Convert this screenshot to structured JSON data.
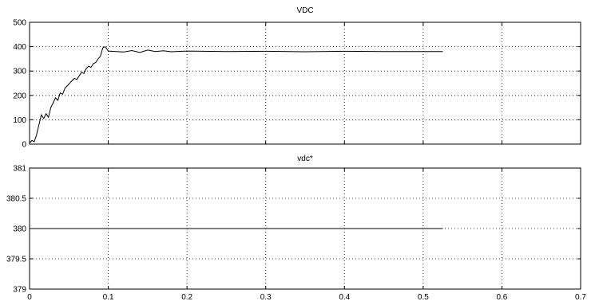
{
  "chart_data": [
    {
      "type": "line",
      "title": "VDC",
      "xlabel": "",
      "ylabel": "",
      "xlim": [
        0,
        0.7
      ],
      "ylim": [
        0,
        500
      ],
      "xticks": [
        "0",
        "0.1",
        "0.2",
        "0.3",
        "0.4",
        "0.5",
        "0.6",
        "0.7"
      ],
      "yticks": [
        "0",
        "100",
        "200",
        "300",
        "400",
        "500"
      ],
      "grid": true,
      "series": [
        {
          "x": [
            0,
            0.003,
            0.006,
            0.009,
            0.012,
            0.015,
            0.018,
            0.021,
            0.024,
            0.027,
            0.03,
            0.033,
            0.036,
            0.039,
            0.042,
            0.045,
            0.048,
            0.051,
            0.054,
            0.057,
            0.06,
            0.063,
            0.066,
            0.069,
            0.072,
            0.075,
            0.078,
            0.081,
            0.084,
            0.087,
            0.09,
            0.093,
            0.096,
            0.1,
            0.11,
            0.12,
            0.13,
            0.14,
            0.15,
            0.16,
            0.17,
            0.18,
            0.2,
            0.25,
            0.3,
            0.35,
            0.4,
            0.45,
            0.5,
            0.525
          ],
          "y": [
            5,
            15,
            10,
            40,
            80,
            120,
            105,
            125,
            110,
            150,
            170,
            190,
            180,
            210,
            205,
            230,
            240,
            250,
            260,
            270,
            265,
            280,
            295,
            290,
            310,
            320,
            315,
            330,
            335,
            350,
            360,
            395,
            400,
            382,
            380,
            378,
            384,
            376,
            386,
            380,
            383,
            379,
            382,
            380,
            381,
            379,
            381,
            380,
            380,
            380
          ]
        }
      ]
    },
    {
      "type": "line",
      "title": "vdc*",
      "xlabel": "",
      "ylabel": "",
      "xlim": [
        0,
        0.7
      ],
      "ylim": [
        379,
        381
      ],
      "xticks": [
        "0",
        "0.1",
        "0.2",
        "0.3",
        "0.4",
        "0.5",
        "0.6",
        "0.7"
      ],
      "yticks": [
        "379",
        "379.5",
        "380",
        "380.5",
        "381"
      ],
      "grid": true,
      "series": [
        {
          "x": [
            0,
            0.525
          ],
          "y": [
            380,
            380
          ]
        }
      ]
    }
  ]
}
